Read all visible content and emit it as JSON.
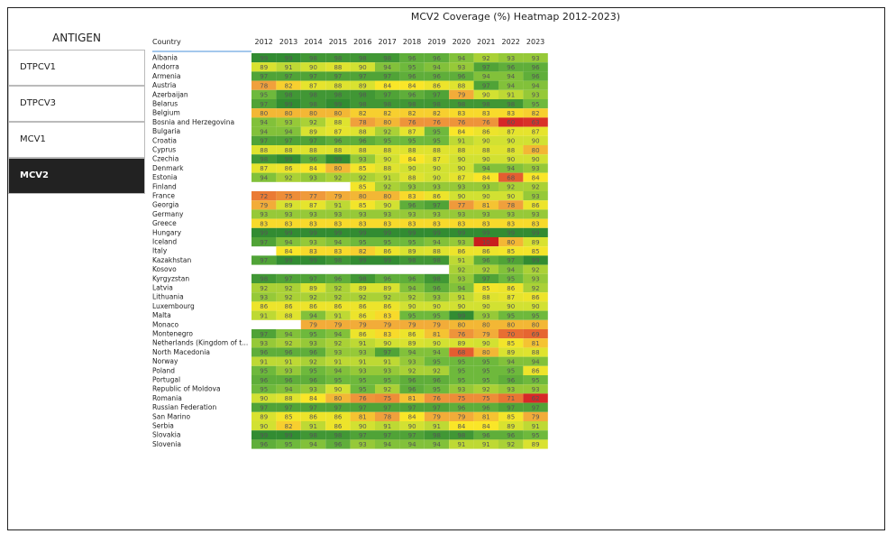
{
  "sidebar": {
    "title": "ANTIGEN",
    "items": [
      "DTPCV1",
      "DTPCV3",
      "MCV1",
      "MCV2"
    ],
    "selected": "MCV2"
  },
  "table": {
    "title": "MCV2 Coverage (%) Heatmap 2012-2023)",
    "header": "Country",
    "columns": [
      "2012",
      "2013",
      "2014",
      "2015",
      "2016",
      "2017",
      "2018",
      "2019",
      "2020",
      "2021",
      "2022",
      "2023"
    ],
    "rows": [
      {
        "country": "Albania",
        "values": [
          99,
          99,
          98,
          98,
          98,
          98,
          96,
          96,
          94,
          92,
          93,
          93
        ]
      },
      {
        "country": "Andorra",
        "values": [
          89,
          91,
          90,
          88,
          90,
          94,
          95,
          94,
          93,
          97,
          96,
          96
        ]
      },
      {
        "country": "Armenia",
        "values": [
          97,
          97,
          97,
          97,
          97,
          97,
          96,
          96,
          96,
          94,
          94,
          96
        ]
      },
      {
        "country": "Austria",
        "values": [
          78,
          82,
          87,
          88,
          89,
          84,
          84,
          86,
          88,
          97,
          94,
          94
        ]
      },
      {
        "country": "Azerbaijan",
        "values": [
          95,
          98,
          98,
          98,
          98,
          97,
          96,
          97,
          79,
          90,
          91,
          93
        ]
      },
      {
        "country": "Belarus",
        "values": [
          97,
          99,
          98,
          99,
          98,
          98,
          98,
          98,
          98,
          98,
          98,
          95
        ]
      },
      {
        "country": "Belgium",
        "values": [
          80,
          80,
          80,
          80,
          82,
          82,
          82,
          82,
          83,
          83,
          83,
          82
        ]
      },
      {
        "country": "Bosnia and Herzegovina",
        "values": [
          94,
          93,
          92,
          88,
          78,
          80,
          76,
          76,
          76,
          76,
          60,
          63
        ]
      },
      {
        "country": "Bulgaria",
        "values": [
          94,
          94,
          89,
          87,
          88,
          92,
          87,
          95,
          84,
          86,
          87,
          87
        ]
      },
      {
        "country": "Croatia",
        "values": [
          97,
          97,
          97,
          96,
          96,
          95,
          95,
          95,
          91,
          90,
          90,
          90
        ]
      },
      {
        "country": "Cyprus",
        "values": [
          88,
          88,
          88,
          88,
          88,
          88,
          88,
          88,
          88,
          88,
          88,
          80
        ]
      },
      {
        "country": "Czechia",
        "values": [
          98,
          99,
          96,
          99,
          93,
          90,
          84,
          87,
          90,
          90,
          90,
          90
        ]
      },
      {
        "country": "Denmark",
        "values": [
          87,
          86,
          84,
          80,
          85,
          88,
          90,
          90,
          90,
          94,
          94,
          93
        ]
      },
      {
        "country": "Estonia",
        "values": [
          94,
          92,
          93,
          92,
          92,
          91,
          88,
          90,
          87,
          84,
          68,
          84
        ]
      },
      {
        "country": "Finland",
        "values": [
          null,
          null,
          null,
          null,
          85,
          92,
          93,
          93,
          93,
          93,
          92,
          92
        ]
      },
      {
        "country": "France",
        "values": [
          72,
          75,
          77,
          79,
          80,
          80,
          83,
          86,
          90,
          90,
          90,
          93
        ]
      },
      {
        "country": "Georgia",
        "values": [
          79,
          89,
          87,
          91,
          85,
          90,
          96,
          97,
          77,
          81,
          78,
          86
        ]
      },
      {
        "country": "Germany",
        "values": [
          93,
          93,
          93,
          93,
          93,
          93,
          93,
          93,
          93,
          93,
          93,
          93
        ]
      },
      {
        "country": "Greece",
        "values": [
          83,
          83,
          83,
          83,
          83,
          83,
          83,
          83,
          83,
          83,
          83,
          83
        ]
      },
      {
        "country": "Hungary",
        "values": [
          99,
          99,
          99,
          99,
          99,
          99,
          99,
          99,
          99,
          99,
          99,
          99
        ]
      },
      {
        "country": "Iceland",
        "values": [
          97,
          94,
          93,
          94,
          95,
          95,
          95,
          94,
          93,
          10,
          80,
          89
        ]
      },
      {
        "country": "Italy",
        "values": [
          null,
          84,
          83,
          83,
          82,
          86,
          89,
          88,
          86,
          86,
          85,
          85
        ]
      },
      {
        "country": "Kazakhstan",
        "values": [
          97,
          99,
          99,
          98,
          99,
          99,
          98,
          98,
          91,
          96,
          97,
          99
        ]
      },
      {
        "country": "Kosovo",
        "values": [
          null,
          null,
          null,
          null,
          null,
          null,
          null,
          null,
          92,
          92,
          94,
          92
        ]
      },
      {
        "country": "Kyrgyzstan",
        "values": [
          98,
          97,
          97,
          96,
          98,
          96,
          96,
          98,
          93,
          97,
          95,
          93
        ]
      },
      {
        "country": "Latvia",
        "values": [
          92,
          92,
          89,
          92,
          89,
          89,
          94,
          96,
          94,
          85,
          86,
          92
        ]
      },
      {
        "country": "Lithuania",
        "values": [
          93,
          92,
          92,
          92,
          92,
          92,
          92,
          93,
          91,
          88,
          87,
          86
        ]
      },
      {
        "country": "Luxembourg",
        "values": [
          86,
          86,
          86,
          86,
          86,
          86,
          90,
          90,
          90,
          90,
          90,
          90
        ]
      },
      {
        "country": "Malta",
        "values": [
          91,
          88,
          94,
          91,
          86,
          83,
          95,
          95,
          99,
          93,
          95,
          95
        ]
      },
      {
        "country": "Monaco",
        "values": [
          null,
          null,
          79,
          79,
          79,
          79,
          79,
          79,
          80,
          80,
          80,
          80
        ]
      },
      {
        "country": "Montenegro",
        "values": [
          97,
          94,
          95,
          94,
          86,
          83,
          86,
          81,
          76,
          79,
          70,
          69
        ]
      },
      {
        "country": "Netherlands (Kingdom of t...",
        "values": [
          93,
          92,
          93,
          92,
          91,
          90,
          89,
          90,
          89,
          90,
          85,
          81
        ]
      },
      {
        "country": "North Macedonia",
        "values": [
          96,
          96,
          96,
          93,
          93,
          97,
          94,
          94,
          68,
          80,
          89,
          88
        ]
      },
      {
        "country": "Norway",
        "values": [
          91,
          91,
          92,
          91,
          91,
          91,
          93,
          95,
          95,
          95,
          94,
          94
        ]
      },
      {
        "country": "Poland",
        "values": [
          95,
          93,
          95,
          94,
          93,
          93,
          92,
          92,
          95,
          95,
          95,
          86
        ]
      },
      {
        "country": "Portugal",
        "values": [
          96,
          96,
          96,
          95,
          95,
          95,
          96,
          96,
          95,
          95,
          96,
          95
        ]
      },
      {
        "country": "Republic of Moldova",
        "values": [
          95,
          94,
          93,
          90,
          95,
          92,
          96,
          95,
          93,
          92,
          93,
          93
        ]
      },
      {
        "country": "Romania",
        "values": [
          90,
          88,
          84,
          80,
          76,
          75,
          81,
          76,
          75,
          75,
          71,
          62
        ]
      },
      {
        "country": "Russian Federation",
        "values": [
          97,
          97,
          97,
          97,
          97,
          97,
          97,
          97,
          96,
          96,
          97,
          97
        ]
      },
      {
        "country": "San Marino",
        "values": [
          89,
          85,
          86,
          86,
          81,
          78,
          84,
          79,
          79,
          81,
          85,
          79
        ]
      },
      {
        "country": "Serbia",
        "values": [
          90,
          82,
          91,
          86,
          90,
          91,
          90,
          91,
          84,
          84,
          89,
          91
        ]
      },
      {
        "country": "Slovakia",
        "values": [
          99,
          99,
          98,
          98,
          97,
          97,
          97,
          98,
          98,
          96,
          96,
          95
        ]
      },
      {
        "country": "Slovenia",
        "values": [
          96,
          95,
          94,
          96,
          93,
          94,
          94,
          94,
          91,
          91,
          92,
          89
        ]
      }
    ]
  }
}
